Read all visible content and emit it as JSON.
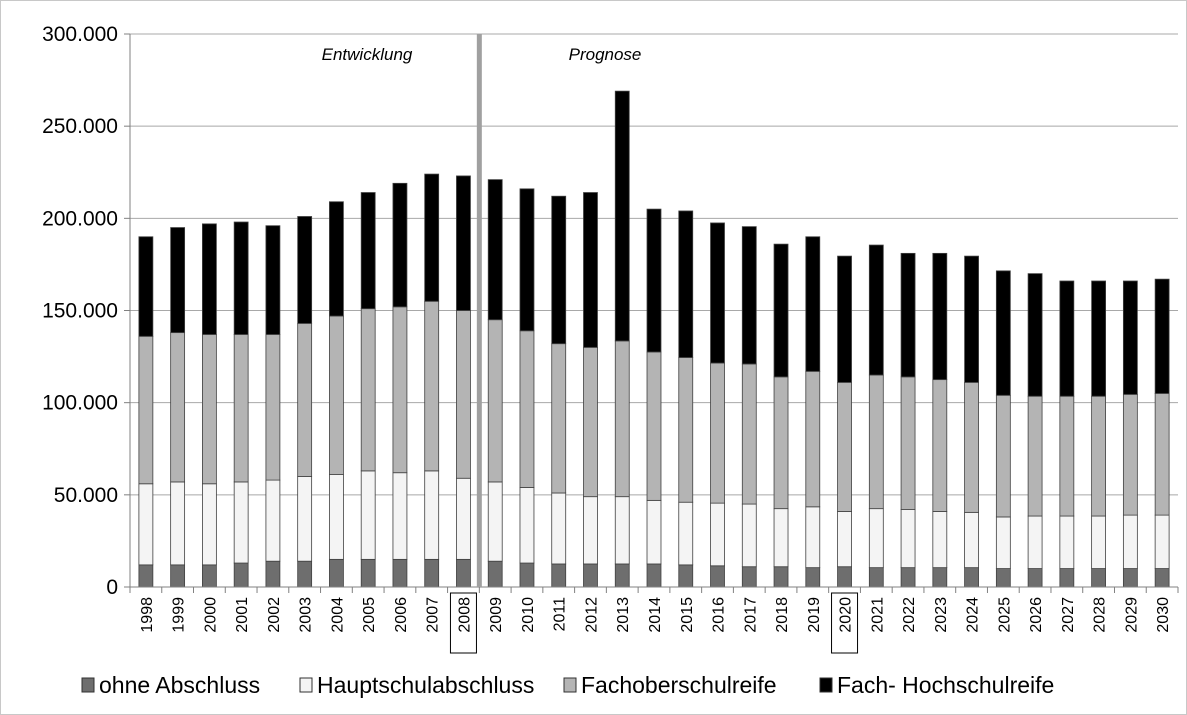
{
  "chart_data": {
    "type": "bar",
    "stacked": true,
    "categories": [
      "1998",
      "1999",
      "2000",
      "2001",
      "2002",
      "2003",
      "2004",
      "2005",
      "2006",
      "2007",
      "2008",
      "2009",
      "2010",
      "2011",
      "2012",
      "2013",
      "2014",
      "2015",
      "2016",
      "2017",
      "2018",
      "2019",
      "2020",
      "2021",
      "2022",
      "2023",
      "2024",
      "2025",
      "2026",
      "2027",
      "2028",
      "2029",
      "2030"
    ],
    "series": [
      {
        "name": "ohne Abschluss",
        "color": "#6e6e6e",
        "values": [
          12000,
          12000,
          12000,
          13000,
          14000,
          14000,
          15000,
          15000,
          15000,
          15000,
          15000,
          14000,
          13000,
          12500,
          12500,
          12500,
          12500,
          12000,
          11500,
          11000,
          11000,
          10500,
          11000,
          10500,
          10500,
          10500,
          10500,
          10000,
          10000,
          10000,
          10000,
          10000,
          10000
        ]
      },
      {
        "name": "Hauptschulabschluss",
        "color": "#f4f4f4",
        "values": [
          44000,
          45000,
          44000,
          44000,
          44000,
          46000,
          46000,
          48000,
          47000,
          48000,
          44000,
          43000,
          41000,
          38500,
          36500,
          36500,
          34500,
          34000,
          34000,
          34000,
          31500,
          33000,
          30000,
          32000,
          31500,
          30500,
          30000,
          28000,
          28500,
          28500,
          28500,
          29000,
          29000
        ]
      },
      {
        "name": "Fachoberschulreife",
        "color": "#b4b4b4",
        "values": [
          80000,
          81000,
          81000,
          80000,
          79000,
          83000,
          86000,
          88000,
          90000,
          92000,
          91000,
          88000,
          85000,
          81000,
          81000,
          84500,
          80500,
          78500,
          76000,
          76000,
          71500,
          73500,
          70000,
          72500,
          72000,
          71500,
          70500,
          66000,
          65000,
          65000,
          65000,
          65500,
          66000
        ]
      },
      {
        "name": "Fach- Hochschulreife",
        "color": "#000000",
        "values": [
          54000,
          57000,
          60000,
          61000,
          59000,
          58000,
          62000,
          63000,
          67000,
          69000,
          73000,
          76000,
          77000,
          80000,
          84000,
          135500,
          77500,
          79500,
          76000,
          74500,
          72000,
          73000,
          68500,
          70500,
          67000,
          68500,
          68500,
          67500,
          66500,
          62500,
          62500,
          61500,
          62000
        ]
      }
    ],
    "ylim": [
      0,
      300000
    ],
    "yticks": [
      "0",
      "50.000",
      "100.000",
      "150.000",
      "200.000",
      "250.000",
      "300.000"
    ],
    "ytick_values": [
      0,
      50000,
      100000,
      150000,
      200000,
      250000,
      300000
    ],
    "grid": true,
    "legend_position": "bottom",
    "annotations": {
      "left_phase": "Entwicklung",
      "right_phase": "Prognose",
      "divider_after": "2008",
      "boxed_categories": [
        "2008",
        "2020"
      ]
    }
  }
}
